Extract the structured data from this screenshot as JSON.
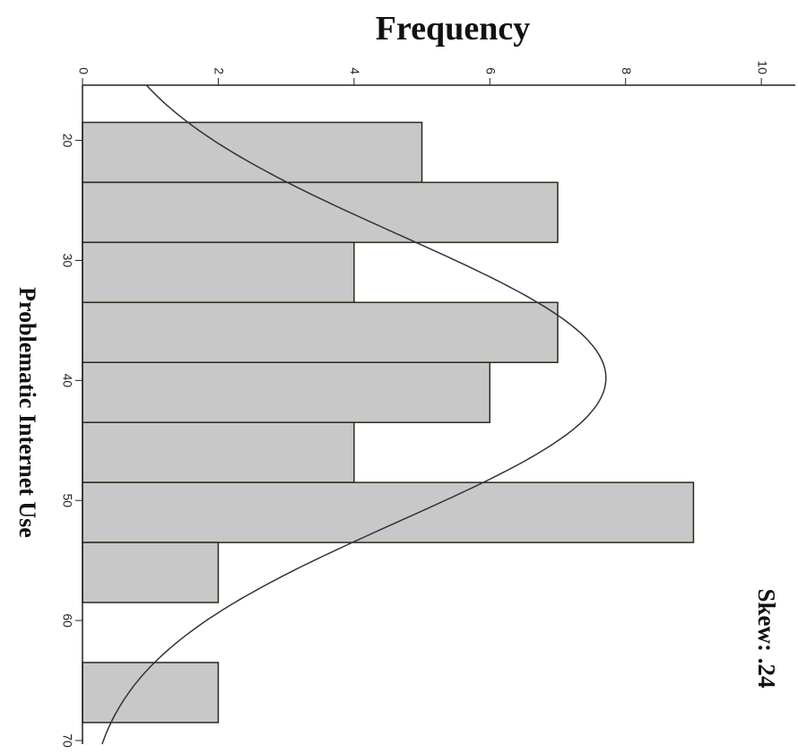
{
  "chart_data": {
    "type": "histogram",
    "title": "Frequency",
    "x_label": "Problematic Internet Use",
    "annotation": "Skew: .24",
    "bins": [
      18.5,
      23.5,
      28.5,
      33.5,
      38.5,
      43.5,
      48.5,
      53.5,
      58.5,
      63.5,
      68.5
    ],
    "counts": [
      5,
      7,
      4,
      7,
      6,
      4,
      9,
      2,
      0,
      2
    ],
    "color": "#c8c8c8",
    "normal_curve": {
      "mean": 39.8,
      "sd": 11.9
    },
    "xlim": [
      15.4,
      70.3
    ],
    "xticks": [
      20,
      30,
      40,
      50,
      60,
      70
    ],
    "ylim": [
      0,
      10.5
    ],
    "yticks": [
      0,
      2,
      4,
      6,
      8,
      10
    ]
  }
}
